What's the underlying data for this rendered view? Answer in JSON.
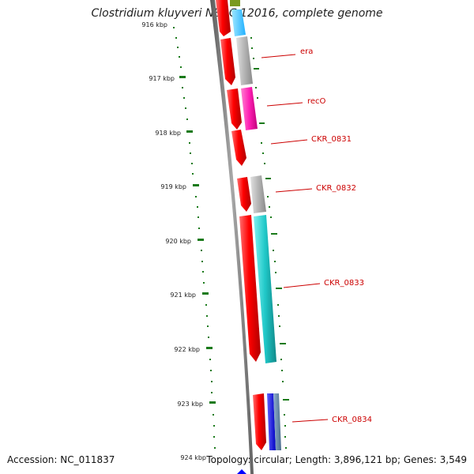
{
  "title": "Clostridium kluyveri NBRC 12016, complete genome",
  "accession": "Accession: NC_011837",
  "summary": "Topology: circular; Length: 3,896,121 bp; Genes: 3,549",
  "colors": {
    "strand_forward": "#ff0000",
    "backbone": "#808080",
    "tick": "#1a7a1a",
    "label": "#cc0000"
  },
  "scale_labels": [
    "916 kbp",
    "917 kbp",
    "918 kbp",
    "919 kbp",
    "920 kbp",
    "921 kbp",
    "922 kbp",
    "923 kbp",
    "924 kbp"
  ],
  "genes": [
    {
      "name": "era",
      "color": "#b4b4b4"
    },
    {
      "name": "recO",
      "color": "#ff1fb4"
    },
    {
      "name": "CKR_0831",
      "color": "#ff0000"
    },
    {
      "name": "CKR_0832",
      "color": "#b4b4b4"
    },
    {
      "name": "CKR_0833",
      "color": "#20c8c8"
    },
    {
      "name": "CKR_0834",
      "color": "#1010ee"
    }
  ]
}
